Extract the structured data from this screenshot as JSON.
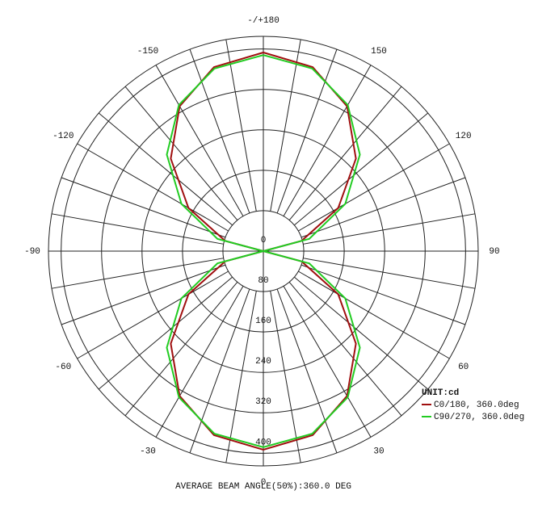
{
  "chart_data": {
    "type": "polar",
    "x": [
      -180,
      -165,
      -150,
      -135,
      -120,
      -105,
      -90,
      -75,
      -60,
      -45,
      -30,
      -15,
      0,
      15,
      30,
      45,
      60,
      75,
      90,
      105,
      120,
      135,
      150,
      165,
      180
    ],
    "series": [
      {
        "name": "C0/180, 360.0deg",
        "color": "#a01010",
        "values": [
          393,
          377,
          331,
          259,
          171,
          78,
          0,
          78,
          171,
          259,
          331,
          377,
          393,
          377,
          331,
          259,
          171,
          78,
          0,
          78,
          171,
          259,
          331,
          377,
          393
        ]
      },
      {
        "name": "C90/270, 360.0deg",
        "color": "#22cc22",
        "values": [
          388,
          374,
          334,
          270,
          187,
          94,
          0,
          94,
          187,
          270,
          334,
          374,
          388,
          374,
          334,
          270,
          187,
          94,
          0,
          94,
          187,
          270,
          334,
          374,
          388
        ]
      }
    ],
    "xlim": [
      -180,
      180
    ],
    "xticks": [
      -150,
      -120,
      -90,
      -60,
      -30,
      0,
      30,
      60,
      90,
      120,
      150,
      {
        "value": 180,
        "label": "-/+180"
      }
    ],
    "ylim": [
      0,
      425
    ],
    "yticks": [
      0,
      80,
      160,
      240,
      320,
      400
    ],
    "legend_title": "UNIT:cd",
    "legend": "lower right",
    "footer": "AVERAGE BEAM ANGLE(50%):360.0 DEG"
  }
}
